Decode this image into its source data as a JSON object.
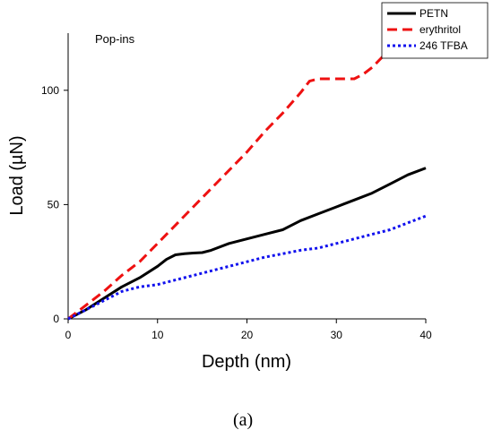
{
  "chart_data": {
    "type": "line",
    "title": "",
    "xlabel": "Depth (nm)",
    "ylabel": "Load (µN)",
    "xlim": [
      0,
      40
    ],
    "ylim": [
      0,
      125
    ],
    "xticks": [
      0,
      10,
      20,
      30,
      40
    ],
    "yticks": [
      0,
      50,
      100
    ],
    "grid": false,
    "legend_position": "top-right",
    "annotation": "Pop-ins",
    "caption": "(a)",
    "series": [
      {
        "name": "PETN",
        "color": "#000000",
        "dash": "solid",
        "x": [
          0,
          2,
          4,
          6,
          8,
          10,
          11,
          12,
          13,
          14,
          15,
          16,
          18,
          20,
          22,
          24,
          26,
          28,
          30,
          32,
          34,
          36,
          38,
          40
        ],
        "y": [
          0,
          4,
          9,
          14,
          18,
          23,
          26,
          28,
          28.5,
          28.8,
          29,
          30,
          33,
          35,
          37,
          39,
          43,
          46,
          49,
          52,
          55,
          59,
          63,
          66
        ]
      },
      {
        "name": "erythritol",
        "color": "#ee1111",
        "dash": "dash",
        "x": [
          0,
          2,
          4,
          6,
          8,
          10,
          12,
          14,
          16,
          18,
          20,
          22,
          24,
          26,
          27,
          28,
          30,
          32,
          33,
          34,
          35,
          36
        ],
        "y": [
          0,
          6,
          12,
          19,
          25,
          33,
          41,
          49,
          57,
          65,
          73,
          82,
          90,
          99,
          104,
          105,
          105,
          105,
          107,
          110,
          114,
          118
        ]
      },
      {
        "name": "246 TFBA",
        "color": "#1111ee",
        "dash": "dot",
        "x": [
          0,
          2,
          4,
          6,
          7,
          8,
          10,
          12,
          14,
          16,
          18,
          20,
          22,
          24,
          26,
          28,
          30,
          32,
          34,
          36,
          38,
          40
        ],
        "y": [
          0,
          4,
          8,
          12,
          13,
          14,
          15,
          17,
          19,
          21,
          23,
          25,
          27,
          28.5,
          30,
          31,
          33,
          35,
          37,
          39,
          42,
          45
        ]
      }
    ]
  }
}
